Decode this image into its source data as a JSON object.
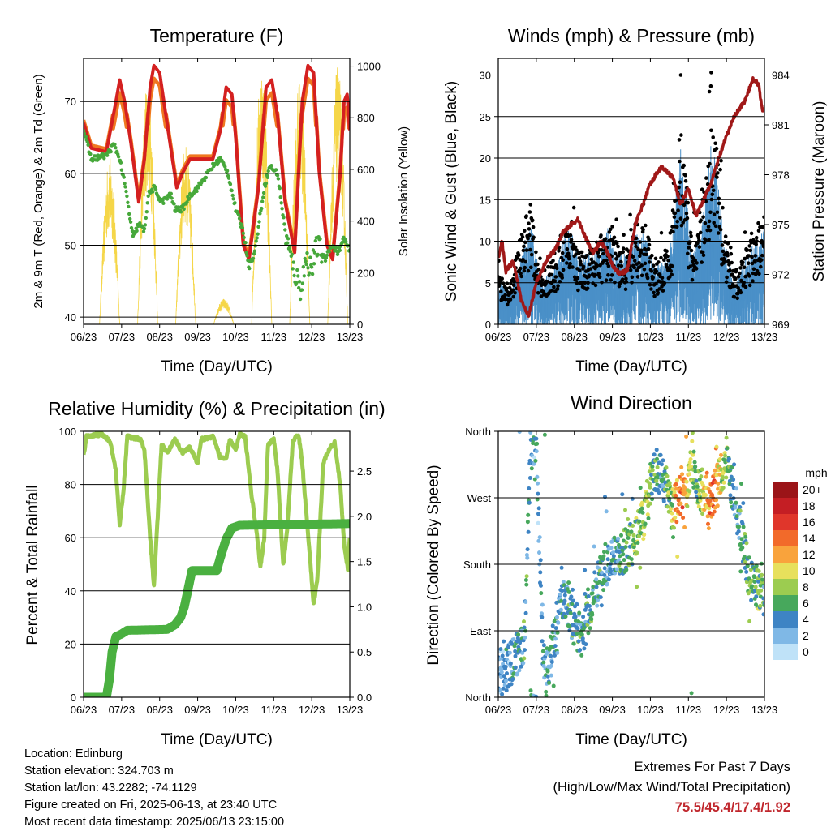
{
  "x_ticks": [
    "06/23",
    "07/23",
    "08/23",
    "09/23",
    "10/23",
    "11/23",
    "12/23",
    "13/23"
  ],
  "x_label": "Time (Day/UTC)",
  "colors": {
    "temp_2m": "#d42020",
    "temp_9m": "#f07820",
    "dewpoint": "#46a83a",
    "solar": "#f5d648",
    "wind": "#4a90c8",
    "gust": "#000000",
    "pressure": "#a01818",
    "rh": "#9ccc50",
    "precip": "#4ab040"
  },
  "charts": {
    "temperature": {
      "title": "Temperature (F)",
      "ylabel_left": "2m & 9m T (Red, Orange) & 2m Td (Green)",
      "ylabel_right": "Solar Insolation (Yellow)",
      "left_ticks": [
        "40",
        "50",
        "60",
        "70"
      ],
      "right_ticks": [
        "0",
        "200",
        "400",
        "600",
        "800",
        "1000"
      ]
    },
    "winds": {
      "title": "Winds (mph) & Pressure (mb)",
      "ylabel_left": "Sonic Wind & Gust (Blue, Black)",
      "ylabel_right": "Station Pressure (Maroon)",
      "left_ticks": [
        "0",
        "5",
        "10",
        "15",
        "20",
        "25",
        "30"
      ],
      "right_ticks": [
        "969",
        "972",
        "975",
        "978",
        "981",
        "984"
      ]
    },
    "humidity": {
      "title": "Relative Humidity (%) & Precipitation (in)",
      "ylabel_left": "Percent & Total Rainfall",
      "left_ticks": [
        "0",
        "20",
        "40",
        "60",
        "80",
        "100"
      ],
      "right_ticks": [
        "0.0",
        "0.5",
        "1.0",
        "1.5",
        "2.0",
        "2.5"
      ]
    },
    "direction": {
      "title": "Wind Direction",
      "ylabel_left": "Direction (Colored By Speed)",
      "left_ticks": [
        "North",
        "East",
        "South",
        "West",
        "North"
      ],
      "colorbar_title": "mph",
      "colorbar_labels": [
        "20+",
        "18",
        "16",
        "14",
        "12",
        "10",
        "8",
        "6",
        "4",
        "2",
        "0"
      ],
      "colorbar_colors": [
        "#9b1418",
        "#c41e24",
        "#e0362b",
        "#f26a2a",
        "#f9a33c",
        "#e7e05c",
        "#9ccc50",
        "#47a85c",
        "#3e84c4",
        "#7fb8e6",
        "#bfe2f8"
      ]
    }
  },
  "chart_data": [
    {
      "type": "line",
      "title": "Temperature (F)",
      "x": [
        "06/23",
        "07/23",
        "08/23",
        "09/23",
        "10/23",
        "11/23",
        "12/23",
        "13/23"
      ],
      "series": [
        {
          "name": "2m & 9m T",
          "values": [
            67,
            73,
            75,
            63,
            72,
            73,
            75,
            65
          ]
        },
        {
          "name": "2m Td",
          "values": [
            63,
            56,
            59,
            58,
            46,
            50,
            44,
            50
          ]
        },
        {
          "name": "Solar Insolation",
          "values": [
            0,
            0,
            0,
            0,
            0,
            0,
            0,
            0
          ]
        }
      ],
      "ylim": [
        39,
        76
      ],
      "y2lim": [
        0,
        1030
      ]
    },
    {
      "type": "scatter",
      "title": "Winds (mph) & Pressure (mb)",
      "x": [
        "06/23",
        "07/23",
        "08/23",
        "09/23",
        "10/23",
        "11/23",
        "12/23",
        "13/23"
      ],
      "series": [
        {
          "name": "Sonic Wind",
          "values": [
            3,
            5,
            6,
            5,
            6,
            8,
            7,
            5
          ]
        },
        {
          "name": "Gust",
          "values": [
            9,
            14,
            15,
            13,
            18,
            30,
            30,
            15
          ]
        },
        {
          "name": "Station Pressure",
          "values": [
            973,
            969,
            974,
            973,
            978,
            976,
            982,
            981
          ]
        }
      ],
      "ylim": [
        0,
        32
      ],
      "y2lim": [
        969,
        985
      ]
    },
    {
      "type": "line",
      "title": "Relative Humidity (%) & Precipitation (in)",
      "x": [
        "06/23",
        "07/23",
        "08/23",
        "09/23",
        "10/23",
        "11/23",
        "12/23",
        "13/23"
      ],
      "series": [
        {
          "name": "Relative Humidity",
          "values": [
            92,
            99,
            42,
            99,
            99,
            50,
            95,
            48
          ]
        },
        {
          "name": "Total Precipitation",
          "values": [
            0.0,
            0.7,
            0.8,
            1.4,
            1.9,
            1.9,
            1.9,
            1.92
          ]
        }
      ],
      "ylim": [
        0,
        100
      ],
      "y2lim": [
        0,
        2.94
      ]
    },
    {
      "type": "scatter",
      "title": "Wind Direction",
      "x": [
        "06/23",
        "07/23",
        "08/23",
        "09/23",
        "10/23",
        "11/23",
        "12/23",
        "13/23"
      ],
      "series": [
        {
          "name": "Direction",
          "values": [
            45,
            340,
            120,
            170,
            270,
            275,
            275,
            160
          ]
        }
      ],
      "ylim": [
        0,
        360
      ]
    }
  ],
  "info": {
    "location": "Location: Edinburg",
    "elevation": "Station elevation: 324.703 m",
    "latlon": "Station lat/lon: 43.2282; -74.1129",
    "created": "Figure created on Fri, 2025-06-13, at 23:40 UTC",
    "recent": "Most recent data timestamp: 2025/06/13 23:15:00"
  },
  "extremes": {
    "title": "Extremes For Past 7 Days",
    "subtitle": "(High/Low/Max Wind/Total Precipitation)",
    "values": "75.5/45.4/17.4/1.92"
  }
}
